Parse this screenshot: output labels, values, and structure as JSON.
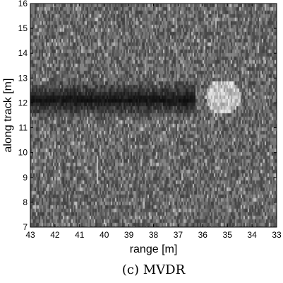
{
  "chart_data": {
    "type": "heatmap",
    "caption": "(c) MVDR",
    "xlabel": "range [m]",
    "ylabel": "along track [m]",
    "xlim": [
      43,
      33
    ],
    "ylim": [
      7,
      16
    ],
    "x_ticks": [
      43,
      42,
      41,
      40,
      39,
      38,
      37,
      36,
      35,
      34,
      33
    ],
    "y_ticks": [
      7,
      8,
      9,
      10,
      11,
      12,
      13,
      14,
      15,
      16
    ],
    "x_tick_labels": [
      "43",
      "42",
      "41",
      "40",
      "39",
      "38",
      "37",
      "36",
      "35",
      "34",
      "33"
    ],
    "y_tick_labels": [
      "7",
      "8",
      "9",
      "10",
      "11",
      "12",
      "13",
      "14",
      "15",
      "16"
    ],
    "colormap": "grayscale",
    "features": [
      {
        "kind": "bright-disk",
        "center_range": 35.2,
        "center_along_track": 12.3,
        "radius_m": 0.7
      },
      {
        "kind": "dark-band",
        "range_from": 43,
        "range_to": 36.3,
        "along_track_from": 11.4,
        "along_track_to": 13.0
      },
      {
        "kind": "faint-streak",
        "range": 40.3,
        "along_track_from": 8.8,
        "along_track_to": 10.0
      }
    ]
  }
}
